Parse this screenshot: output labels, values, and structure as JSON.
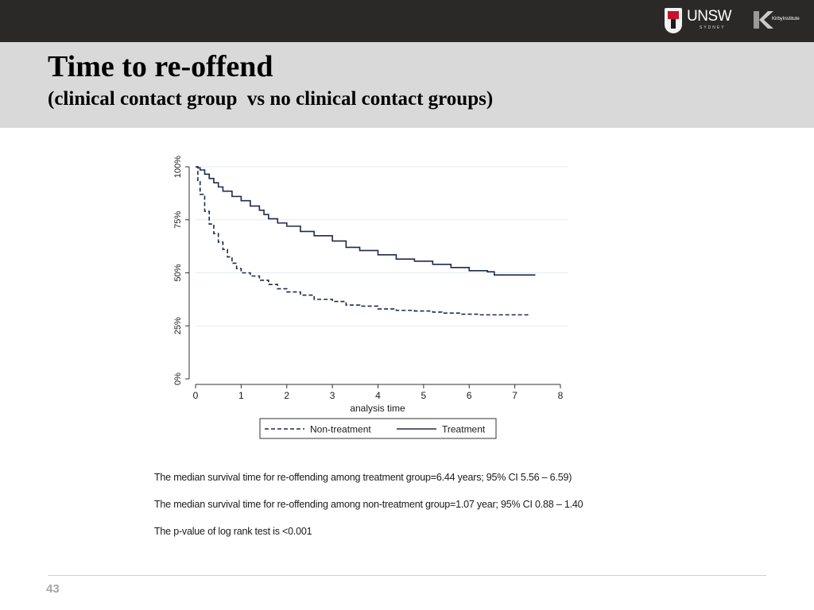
{
  "header": {
    "logos": {
      "unsw_text": "UNSW",
      "unsw_sub": "SYDNEY",
      "kirby_text": "KirbyInstitute"
    }
  },
  "slide": {
    "title": "Time to re-offend",
    "subtitle": "(clinical contact group  vs no clinical contact groups)"
  },
  "chart_data": {
    "type": "line",
    "title": "",
    "xlabel": "analysis time",
    "ylabel": "",
    "xlim": [
      0,
      8
    ],
    "ylim": [
      0,
      1
    ],
    "x_ticks": [
      0,
      1,
      2,
      3,
      4,
      5,
      6,
      7,
      8
    ],
    "x_tick_labels": [
      "0",
      "1",
      "2",
      "3",
      "4",
      "5",
      "6",
      "7",
      "8"
    ],
    "y_ticks": [
      0,
      0.25,
      0.5,
      0.75,
      1.0
    ],
    "y_tick_labels": [
      "0%",
      "25%",
      "50%",
      "75%",
      "100%"
    ],
    "grid": "horizontal",
    "legend_position": "bottom",
    "series": [
      {
        "name": "Non-treatment",
        "style": "dashed",
        "color": "#1f2a4a",
        "x": [
          0,
          0.05,
          0.1,
          0.2,
          0.3,
          0.4,
          0.5,
          0.6,
          0.7,
          0.8,
          0.9,
          1.0,
          1.2,
          1.4,
          1.6,
          1.8,
          2.0,
          2.3,
          2.6,
          3.0,
          3.3,
          3.6,
          4.0,
          4.4,
          4.8,
          5.2,
          5.4,
          5.8,
          6.2,
          6.6,
          7.0,
          7.35
        ],
        "values": [
          1.0,
          0.93,
          0.87,
          0.79,
          0.73,
          0.685,
          0.645,
          0.61,
          0.575,
          0.545,
          0.52,
          0.5,
          0.485,
          0.465,
          0.445,
          0.425,
          0.41,
          0.395,
          0.375,
          0.365,
          0.348,
          0.343,
          0.33,
          0.323,
          0.32,
          0.315,
          0.31,
          0.305,
          0.302,
          0.302,
          0.302,
          0.302
        ]
      },
      {
        "name": "Treatment",
        "style": "solid",
        "color": "#1f2a4a",
        "x": [
          0,
          0.05,
          0.1,
          0.2,
          0.3,
          0.4,
          0.5,
          0.6,
          0.8,
          1.0,
          1.2,
          1.4,
          1.5,
          1.6,
          1.8,
          2.0,
          2.3,
          2.6,
          3.0,
          3.3,
          3.6,
          4.0,
          4.4,
          4.8,
          5.2,
          5.6,
          6.0,
          6.4,
          6.55,
          7.0,
          7.45
        ],
        "values": [
          1.0,
          0.995,
          0.985,
          0.965,
          0.945,
          0.925,
          0.905,
          0.885,
          0.86,
          0.84,
          0.815,
          0.795,
          0.775,
          0.755,
          0.735,
          0.72,
          0.695,
          0.675,
          0.65,
          0.62,
          0.605,
          0.585,
          0.565,
          0.555,
          0.54,
          0.525,
          0.51,
          0.505,
          0.49,
          0.49,
          0.49
        ]
      }
    ]
  },
  "notes": [
    "The median survival time for re-offending among treatment group=6.44 years; 95% CI 5.56 – 6.59)",
    "The median survival time for re-offending among non-treatment group=1.07 year; 95% CI 0.88 – 1.40",
    "The p-value of log rank test is <0.001"
  ],
  "footer": {
    "page_number": "43"
  }
}
